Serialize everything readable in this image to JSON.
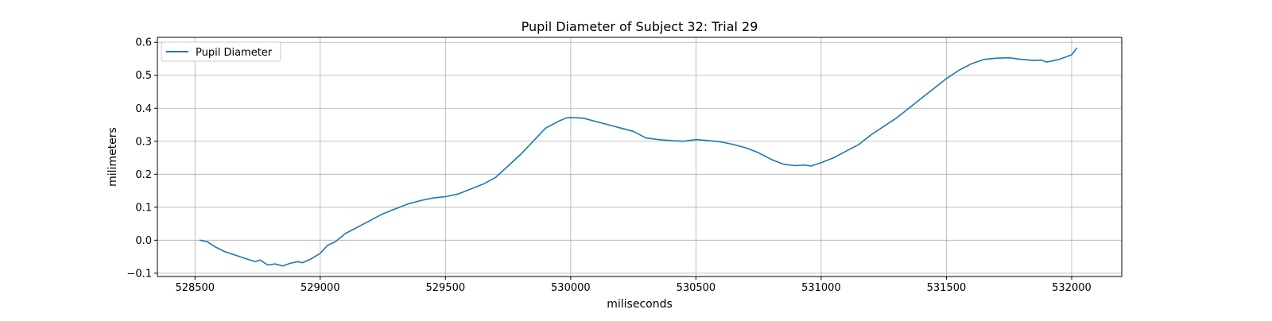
{
  "chart_data": {
    "type": "line",
    "title": "Pupil Diameter of Subject 32: Trial 29",
    "xlabel": "miliseconds",
    "ylabel": "milimeters",
    "xlim": [
      528350,
      532200
    ],
    "ylim": [
      -0.11,
      0.615
    ],
    "x_ticks": [
      528500,
      529000,
      529500,
      530000,
      530500,
      531000,
      531500,
      532000
    ],
    "x_tick_labels": [
      "528500",
      "529000",
      "529500",
      "530000",
      "530500",
      "531000",
      "531500",
      "532000"
    ],
    "y_ticks": [
      -0.1,
      0.0,
      0.1,
      0.2,
      0.3,
      0.4,
      0.5,
      0.6
    ],
    "y_tick_labels": [
      "−0.1",
      "0.0",
      "0.1",
      "0.2",
      "0.3",
      "0.4",
      "0.5",
      "0.6"
    ],
    "grid": true,
    "legend_position": "upper-left",
    "series": [
      {
        "name": "Pupil Diameter",
        "color": "#1f77b4",
        "x": [
          528520,
          528550,
          528580,
          528620,
          528660,
          528700,
          528740,
          528760,
          528790,
          528820,
          528850,
          528880,
          528910,
          528930,
          528960,
          529000,
          529030,
          529060,
          529100,
          529150,
          529200,
          529250,
          529300,
          529350,
          529400,
          529450,
          529500,
          529550,
          529600,
          529650,
          529700,
          529750,
          529800,
          529850,
          529900,
          529950,
          529980,
          530000,
          530050,
          530100,
          530150,
          530200,
          530250,
          530300,
          530350,
          530400,
          530450,
          530500,
          530550,
          530600,
          530650,
          530700,
          530750,
          530800,
          530850,
          530900,
          530930,
          530960,
          531000,
          531050,
          531100,
          531150,
          531200,
          531250,
          531300,
          531350,
          531400,
          531450,
          531500,
          531550,
          531600,
          531650,
          531700,
          531750,
          531800,
          531850,
          531880,
          531900,
          531950,
          532000,
          532020
        ],
        "y": [
          0.0,
          -0.005,
          -0.02,
          -0.035,
          -0.045,
          -0.055,
          -0.065,
          -0.06,
          -0.075,
          -0.072,
          -0.078,
          -0.07,
          -0.065,
          -0.068,
          -0.058,
          -0.04,
          -0.015,
          -0.005,
          0.02,
          0.04,
          0.06,
          0.08,
          0.095,
          0.11,
          0.12,
          0.128,
          0.132,
          0.14,
          0.155,
          0.17,
          0.19,
          0.225,
          0.26,
          0.3,
          0.34,
          0.36,
          0.37,
          0.372,
          0.37,
          0.36,
          0.35,
          0.34,
          0.33,
          0.31,
          0.305,
          0.302,
          0.3,
          0.305,
          0.302,
          0.298,
          0.29,
          0.28,
          0.265,
          0.245,
          0.23,
          0.226,
          0.228,
          0.225,
          0.235,
          0.25,
          0.27,
          0.29,
          0.32,
          0.345,
          0.37,
          0.4,
          0.43,
          0.46,
          0.49,
          0.515,
          0.535,
          0.548,
          0.552,
          0.553,
          0.548,
          0.545,
          0.546,
          0.54,
          0.548,
          0.562,
          0.582
        ]
      }
    ]
  }
}
